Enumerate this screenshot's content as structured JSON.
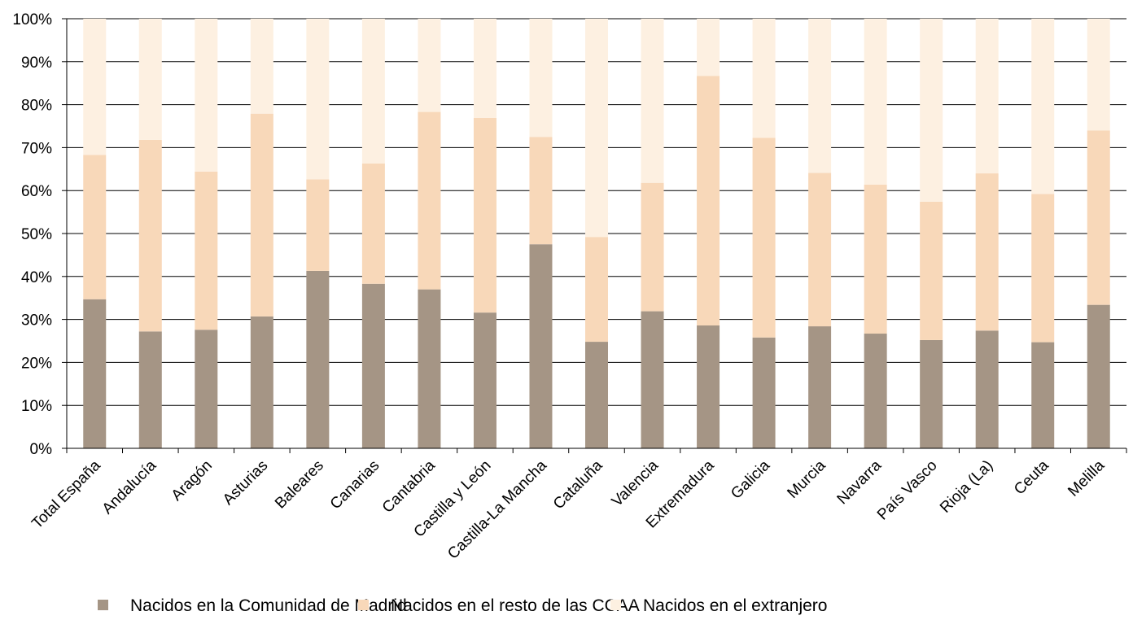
{
  "chart_data": {
    "type": "bar",
    "stacked": true,
    "percent": true,
    "categories": [
      "Total España",
      "Andalucía",
      "Aragón",
      "Asturias",
      "Baleares",
      "Canarias",
      "Cantabria",
      "Castilla y León",
      "Castilla-La Mancha",
      "Cataluña",
      "Valencia",
      "Extremadura",
      "Galicia",
      "Murcia",
      "Navarra",
      "País Vasco",
      "Rioja (La)",
      "Ceuta",
      "Melilla"
    ],
    "series": [
      {
        "name": "Nacidos en la Comunidad de Madrid",
        "color": "#a59585",
        "values": [
          34.7,
          27.2,
          27.6,
          30.7,
          41.3,
          38.3,
          37.0,
          31.6,
          47.5,
          24.8,
          31.9,
          28.6,
          25.8,
          28.4,
          26.7,
          25.2,
          27.4,
          24.7,
          33.4
        ]
      },
      {
        "name": "Nacidos en el resto de las CCAA",
        "color": "#f8d8b9",
        "values": [
          33.6,
          44.6,
          36.8,
          47.2,
          21.3,
          28.0,
          41.3,
          45.3,
          25.0,
          24.4,
          29.9,
          58.1,
          46.5,
          35.7,
          34.7,
          32.2,
          36.6,
          34.5,
          40.6
        ]
      },
      {
        "name": "Nacidos en el extranjero",
        "color": "#fdf0e1",
        "values": [
          31.7,
          28.2,
          35.6,
          22.1,
          37.4,
          33.7,
          21.7,
          23.1,
          27.5,
          50.8,
          38.2,
          13.3,
          27.7,
          35.9,
          38.6,
          42.6,
          36.0,
          40.8,
          26.0
        ]
      }
    ],
    "yticks": [
      "0%",
      "10%",
      "20%",
      "30%",
      "40%",
      "50%",
      "60%",
      "70%",
      "80%",
      "90%",
      "100%"
    ],
    "ylim": [
      0,
      100
    ],
    "title": "",
    "xlabel": "",
    "ylabel": "",
    "grid": true,
    "legend_position": "bottom"
  }
}
